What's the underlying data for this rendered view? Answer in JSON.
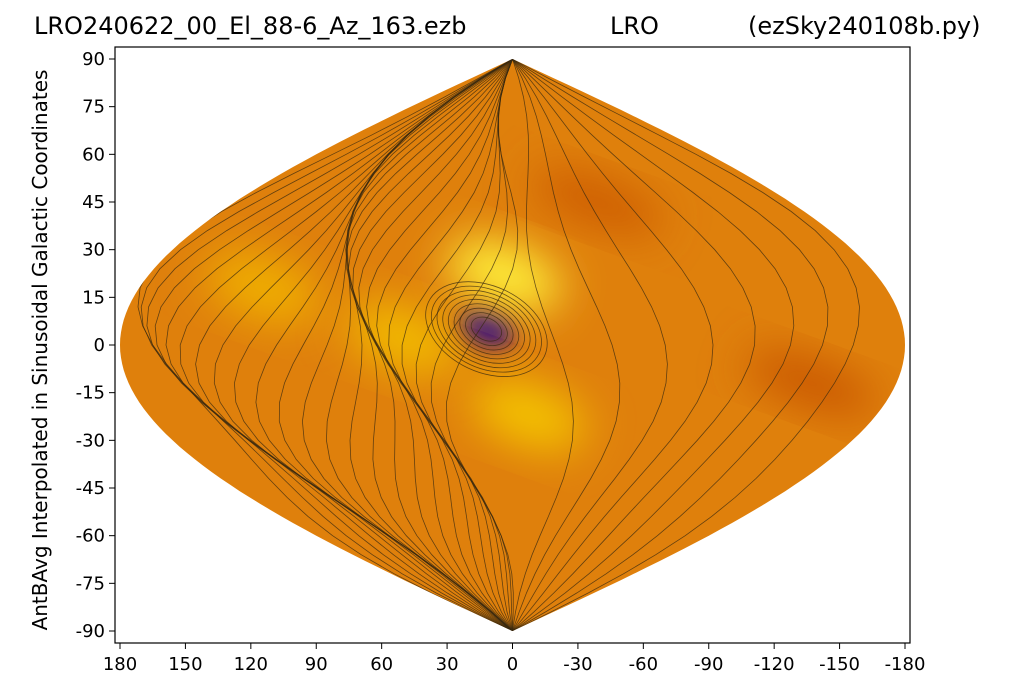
{
  "title": {
    "left": "LRO240622_00_El_88-6_Az_163.ezb",
    "center": "LRO",
    "right": "(ezSky240108b.py)"
  },
  "chart_data": {
    "type": "heatmap",
    "projection": "sinusoidal",
    "ylabel": "AntBAvg Interpolated in Sinusoidal Galactic Coordinates",
    "xlabel": "",
    "xticks": [
      180,
      150,
      120,
      90,
      60,
      30,
      0,
      -30,
      -60,
      -90,
      -120,
      -150,
      -180
    ],
    "yticks": [
      90,
      75,
      60,
      45,
      30,
      15,
      0,
      -15,
      -30,
      -45,
      -60,
      -75,
      -90
    ],
    "xlim": [
      180,
      -180
    ],
    "ylim": [
      -90,
      90
    ],
    "grid": false,
    "colormap": [
      "#4a0fd0",
      "#7a2cf0",
      "#d56a06",
      "#e88a10",
      "#f5c000",
      "#fff23a"
    ],
    "features": [
      {
        "kind": "minimum",
        "lon": 12,
        "lat": 5,
        "color": "#3a0a7a"
      },
      {
        "kind": "maximum",
        "lon": 4,
        "lat": 22,
        "color": "#fff23a"
      },
      {
        "kind": "maximum",
        "lon": -8,
        "lat": -22,
        "color": "#f4c400"
      },
      {
        "kind": "maximum",
        "lon": 120,
        "lat": 18,
        "color": "#f0b000"
      },
      {
        "kind": "maximum",
        "lon": 50,
        "lat": 2,
        "color": "#f2bb00"
      },
      {
        "kind": "ridge",
        "lon": -55,
        "lat": 45,
        "color": "#cc5a04"
      },
      {
        "kind": "ridge",
        "lon": -140,
        "lat": -12,
        "color": "#c85404"
      }
    ]
  }
}
